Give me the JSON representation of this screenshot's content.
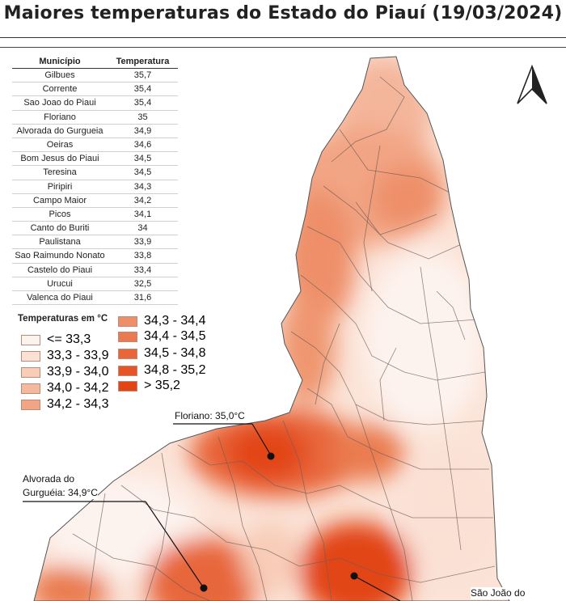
{
  "title": "Maiores temperaturas do Estado do Piauí (19/03/2024)",
  "table": {
    "header": [
      "Município",
      "Temperatura"
    ],
    "rows": [
      [
        "Gilbues",
        "35,7"
      ],
      [
        "Corrente",
        "35,4"
      ],
      [
        "Sao Joao do Piaui",
        "35,4"
      ],
      [
        "Floriano",
        "35"
      ],
      [
        "Alvorada do Gurgueia",
        "34,9"
      ],
      [
        "Oeiras",
        "34,6"
      ],
      [
        "Bom Jesus do Piaui",
        "34,5"
      ],
      [
        "Teresina",
        "34,5"
      ],
      [
        "Piripiri",
        "34,3"
      ],
      [
        "Campo Maior",
        "34,2"
      ],
      [
        "Picos",
        "34,1"
      ],
      [
        "Canto do Buriti",
        "34"
      ],
      [
        "Paulistana",
        "33,9"
      ],
      [
        "Sao Raimundo Nonato",
        "33,8"
      ],
      [
        "Castelo do Piaui",
        "33,4"
      ],
      [
        "Urucui",
        "32,5"
      ],
      [
        "Valenca do Piaui",
        "31,6"
      ]
    ]
  },
  "legend": {
    "title": "Temperaturas em °C",
    "items": [
      {
        "label": "<= 33,3",
        "color": "#fdf3ee"
      },
      {
        "label": "33,3 - 33,9",
        "color": "#fbe1d4"
      },
      {
        "label": "33,9 - 34,0",
        "color": "#f8cdb8"
      },
      {
        "label": "34,0 - 34,2",
        "color": "#f5b99d"
      },
      {
        "label": "34,2 - 34,3",
        "color": "#f2a585"
      },
      {
        "label": "34,3 - 34,4",
        "color": "#ee8f69"
      },
      {
        "label": "34,4 - 34,5",
        "color": "#ea7b50"
      },
      {
        "label": "34,5 - 34,8",
        "color": "#e8663a"
      },
      {
        "label": "34,8 - 35,2",
        "color": "#e65527"
      },
      {
        "label": "> 35,2",
        "color": "#e24414"
      }
    ]
  },
  "callouts": {
    "floriano": "Floriano: 35,0°C",
    "alvorada_line1": "Alvorada do",
    "alvorada_line2": "Gurguéia: 34,9°C",
    "sao_joao": "São João do"
  },
  "north_icon": "north-arrow-icon"
}
